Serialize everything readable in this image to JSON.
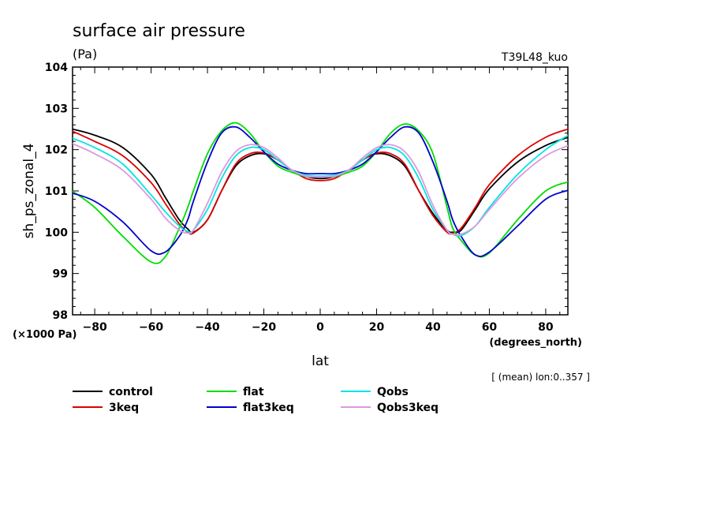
{
  "chart_data": {
    "type": "line",
    "title": "surface air pressure",
    "units": "(Pa)",
    "run_label": "T39L48_kuo",
    "ylabel": "sh_ps_zonal_4",
    "xlabel": "lat",
    "x_units": "(degrees_north)",
    "y_scale_note": "(×1000 Pa)",
    "mean_note": "[ (mean) lon:0..357 ]",
    "xlim": [
      -87.86,
      87.86
    ],
    "ylim": [
      98,
      104
    ],
    "x_ticks": [
      -80,
      -60,
      -40,
      -20,
      0,
      20,
      40,
      60,
      80
    ],
    "x_tick_labels": [
      "−80",
      "−60",
      "−40",
      "−20",
      "0",
      "20",
      "40",
      "60",
      "80"
    ],
    "y_ticks": [
      98,
      99,
      100,
      101,
      102,
      103,
      104
    ],
    "y_tick_labels": [
      "98",
      "99",
      "100",
      "101",
      "102",
      "103",
      "104"
    ],
    "x": [
      -88,
      -80,
      -70,
      -60,
      -55,
      -50,
      -47,
      -45,
      -40,
      -35,
      -30,
      -25,
      -20,
      -15,
      -10,
      -5,
      0,
      5,
      10,
      15,
      20,
      25,
      30,
      35,
      40,
      45,
      47,
      50,
      55,
      60,
      70,
      80,
      88
    ],
    "series": [
      {
        "name": "control",
        "color": "#000000",
        "values": [
          102.5,
          102.35,
          102.05,
          101.4,
          100.85,
          100.3,
          100.08,
          100.0,
          100.3,
          101.0,
          101.6,
          101.85,
          101.9,
          101.75,
          101.5,
          101.35,
          101.3,
          101.35,
          101.5,
          101.75,
          101.9,
          101.85,
          101.6,
          101.0,
          100.45,
          100.05,
          100.0,
          100.05,
          100.55,
          101.05,
          101.7,
          102.1,
          102.3
        ]
      },
      {
        "name": "3keq",
        "color": "#dd0000",
        "values": [
          102.45,
          102.2,
          101.85,
          101.2,
          100.7,
          100.2,
          100.0,
          99.98,
          100.3,
          101.0,
          101.65,
          101.9,
          101.92,
          101.75,
          101.5,
          101.3,
          101.25,
          101.3,
          101.5,
          101.75,
          101.92,
          101.9,
          101.65,
          101.0,
          100.4,
          100.0,
          99.98,
          100.1,
          100.6,
          101.15,
          101.85,
          102.3,
          102.5
        ]
      },
      {
        "name": "flat",
        "color": "#00dd00",
        "values": [
          101.0,
          100.6,
          99.9,
          99.28,
          99.4,
          100.1,
          100.6,
          101.0,
          101.9,
          102.45,
          102.65,
          102.4,
          101.95,
          101.6,
          101.45,
          101.35,
          101.35,
          101.35,
          101.45,
          101.6,
          101.95,
          102.4,
          102.62,
          102.45,
          101.9,
          100.6,
          100.1,
          99.8,
          99.45,
          99.5,
          100.3,
          101.0,
          101.22
        ]
      },
      {
        "name": "flat3keq",
        "color": "#0000cc",
        "values": [
          100.95,
          100.75,
          100.25,
          99.55,
          99.52,
          99.9,
          100.3,
          100.75,
          101.7,
          102.4,
          102.55,
          102.3,
          101.95,
          101.65,
          101.5,
          101.42,
          101.42,
          101.42,
          101.5,
          101.65,
          101.95,
          102.3,
          102.55,
          102.4,
          101.7,
          100.75,
          100.3,
          99.9,
          99.45,
          99.52,
          100.15,
          100.8,
          101.02
        ]
      },
      {
        "name": "Qobs",
        "color": "#00e5e5",
        "values": [
          102.28,
          102.05,
          101.65,
          100.9,
          100.5,
          100.15,
          100.02,
          100.05,
          100.55,
          101.3,
          101.85,
          102.05,
          102.0,
          101.75,
          101.5,
          101.38,
          101.36,
          101.38,
          101.5,
          101.75,
          102.0,
          102.05,
          101.85,
          101.3,
          100.55,
          100.05,
          99.95,
          99.92,
          100.15,
          100.6,
          101.4,
          102.0,
          102.35
        ]
      },
      {
        "name": "Qobs3keq",
        "color": "#dd99dd",
        "values": [
          102.15,
          101.9,
          101.5,
          100.8,
          100.35,
          100.05,
          99.98,
          100.05,
          100.7,
          101.45,
          101.95,
          102.12,
          102.05,
          101.8,
          101.5,
          101.36,
          101.34,
          101.36,
          101.5,
          101.8,
          102.05,
          102.12,
          101.95,
          101.45,
          100.65,
          100.05,
          99.95,
          99.95,
          100.15,
          100.55,
          101.3,
          101.85,
          102.1
        ]
      }
    ],
    "grid": false,
    "legend_position": "bottom"
  }
}
